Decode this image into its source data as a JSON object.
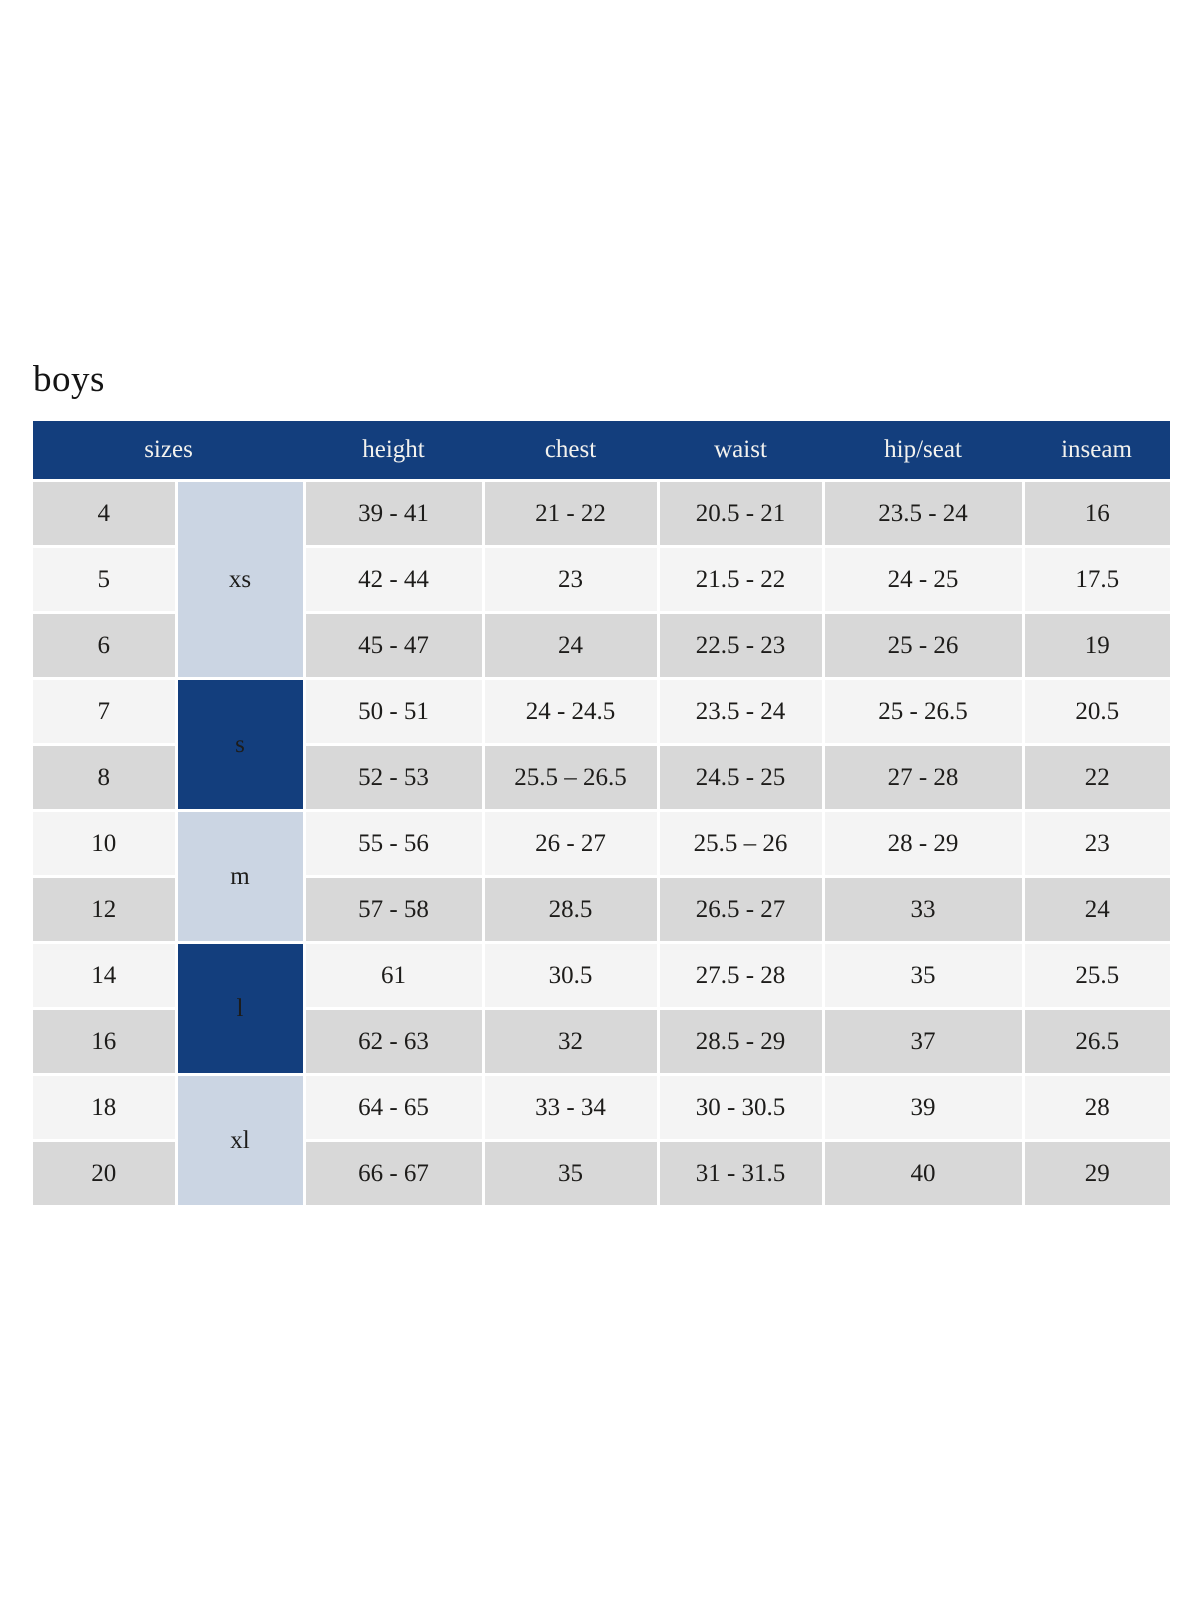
{
  "page": {
    "title": "boys"
  },
  "colors": {
    "header_bg": "#133e7d",
    "header_text": "#f3f2ee",
    "group_light_bg": "#cbd5e3",
    "group_dark_bg": "#133e7d",
    "group_dark_text": "#e9edf3",
    "row_dark_bg": "#d8d8d8",
    "row_light_bg": "#f4f4f4",
    "body_text": "#1d1c1a",
    "page_bg": "#ffffff"
  },
  "chart_data": {
    "type": "table",
    "title": "boys",
    "columns": [
      "sizes",
      "height",
      "chest",
      "waist",
      "hip/seat",
      "inseam"
    ],
    "size_groups": [
      {
        "label": "xs",
        "span": 3,
        "variant": "light"
      },
      {
        "label": "s",
        "span": 2,
        "variant": "dark"
      },
      {
        "label": "m",
        "span": 2,
        "variant": "light"
      },
      {
        "label": "l",
        "span": 2,
        "variant": "dark"
      },
      {
        "label": "xl",
        "span": 2,
        "variant": "light"
      }
    ],
    "rows": [
      {
        "size": "4",
        "height": "39 - 41",
        "chest": "21 - 22",
        "waist": "20.5 - 21",
        "hip_seat": "23.5 - 24",
        "inseam": "16"
      },
      {
        "size": "5",
        "height": "42 - 44",
        "chest": "23",
        "waist": "21.5 - 22",
        "hip_seat": "24 - 25",
        "inseam": "17.5"
      },
      {
        "size": "6",
        "height": "45 - 47",
        "chest": "24",
        "waist": "22.5 - 23",
        "hip_seat": "25 - 26",
        "inseam": "19"
      },
      {
        "size": "7",
        "height": "50 - 51",
        "chest": "24 - 24.5",
        "waist": "23.5 - 24",
        "hip_seat": "25 - 26.5",
        "inseam": "20.5"
      },
      {
        "size": "8",
        "height": "52 - 53",
        "chest": "25.5 – 26.5",
        "waist": "24.5 - 25",
        "hip_seat": "27 - 28",
        "inseam": "22"
      },
      {
        "size": "10",
        "height": "55 - 56",
        "chest": "26 - 27",
        "waist": "25.5 – 26",
        "hip_seat": "28 - 29",
        "inseam": "23"
      },
      {
        "size": "12",
        "height": "57 - 58",
        "chest": "28.5",
        "waist": "26.5 - 27",
        "hip_seat": "33",
        "inseam": "24"
      },
      {
        "size": "14",
        "height": "61",
        "chest": "30.5",
        "waist": "27.5 - 28",
        "hip_seat": "35",
        "inseam": "25.5"
      },
      {
        "size": "16",
        "height": "62 - 63",
        "chest": "32",
        "waist": "28.5 - 29",
        "hip_seat": "37",
        "inseam": "26.5"
      },
      {
        "size": "18",
        "height": "64 - 65",
        "chest": "33 - 34",
        "waist": "30 - 30.5",
        "hip_seat": "39",
        "inseam": "28"
      },
      {
        "size": "20",
        "height": "66 - 67",
        "chest": "35",
        "waist": "31 - 31.5",
        "hip_seat": "40",
        "inseam": "29"
      }
    ]
  }
}
